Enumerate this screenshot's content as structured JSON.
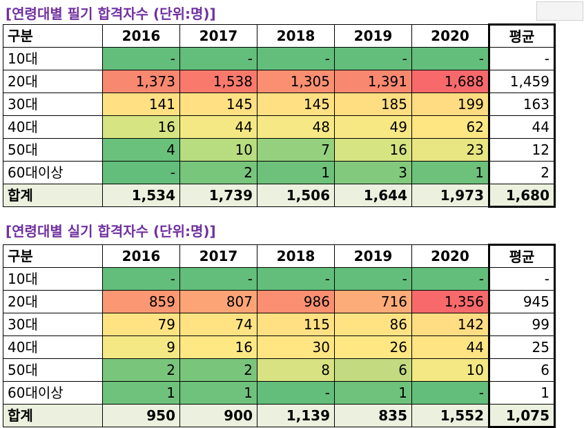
{
  "written": {
    "title": "[연령대별 필기 합격자수 (단위:명)]",
    "headers": [
      "구분",
      "2016",
      "2017",
      "2018",
      "2019",
      "2020",
      "평균"
    ],
    "rows": [
      {
        "label": "10대",
        "values": [
          "-",
          "-",
          "-",
          "-",
          "-"
        ],
        "colors": [
          "#63be7b",
          "#63be7b",
          "#63be7b",
          "#63be7b",
          "#63be7b"
        ],
        "avg": "-"
      },
      {
        "label": "20대",
        "values": [
          "1,373",
          "1,538",
          "1,305",
          "1,391",
          "1,688"
        ],
        "colors": [
          "#f98870",
          "#f97a6d",
          "#fa8f72",
          "#f98870",
          "#f8696b"
        ],
        "avg": "1,459"
      },
      {
        "label": "30대",
        "values": [
          "141",
          "145",
          "145",
          "185",
          "199"
        ],
        "colors": [
          "#ffe083",
          "#ffe083",
          "#ffe083",
          "#ffde82",
          "#ffdc81"
        ],
        "avg": "163"
      },
      {
        "label": "40대",
        "values": [
          "16",
          "44",
          "48",
          "49",
          "62"
        ],
        "colors": [
          "#d6e482",
          "#f3e884",
          "#f6e884",
          "#f8e884",
          "#fee783"
        ],
        "avg": "44"
      },
      {
        "label": "50대",
        "values": [
          "4",
          "10",
          "7",
          "16",
          "23"
        ],
        "colors": [
          "#6ac17c",
          "#b8dc80",
          "#95d07e",
          "#d6e482",
          "#e8e583"
        ],
        "avg": "12"
      },
      {
        "label": "60대이상",
        "values": [
          "-",
          "2",
          "1",
          "3",
          "1"
        ],
        "colors": [
          "#63be7b",
          "#78c57c",
          "#6dc17b",
          "#83c97d",
          "#6dc17b"
        ],
        "avg": "2"
      }
    ],
    "total": {
      "label": "합계",
      "values": [
        "1,534",
        "1,739",
        "1,506",
        "1,644",
        "1,973"
      ],
      "avg": "1,680"
    }
  },
  "practical": {
    "title": "[연령대별 실기 합격자수 (단위:명)]",
    "headers": [
      "구분",
      "2016",
      "2017",
      "2018",
      "2019",
      "2020",
      "평균"
    ],
    "rows": [
      {
        "label": "10대",
        "values": [
          "-",
          "-",
          "-",
          "-",
          "-"
        ],
        "colors": [
          "#63be7b",
          "#63be7b",
          "#63be7b",
          "#63be7b",
          "#63be7b"
        ],
        "avg": "-"
      },
      {
        "label": "20대",
        "values": [
          "859",
          "807",
          "986",
          "716",
          "1,356"
        ],
        "colors": [
          "#fb9873",
          "#fca475",
          "#fa8f72",
          "#fcac78",
          "#f8696b"
        ],
        "avg": "945"
      },
      {
        "label": "30대",
        "values": [
          "79",
          "74",
          "115",
          "86",
          "142"
        ],
        "colors": [
          "#ffe383",
          "#ffe383",
          "#ffe082",
          "#ffe383",
          "#ffdd82"
        ],
        "avg": "99"
      },
      {
        "label": "40대",
        "values": [
          "9",
          "16",
          "30",
          "26",
          "44"
        ],
        "colors": [
          "#f4e884",
          "#fee884",
          "#ffe683",
          "#ffe783",
          "#ffe483"
        ],
        "avg": "25"
      },
      {
        "label": "50대",
        "values": [
          "2",
          "2",
          "8",
          "6",
          "10"
        ],
        "colors": [
          "#79c57c",
          "#79c57c",
          "#d8e282",
          "#c3da80",
          "#f4e884"
        ],
        "avg": "6"
      },
      {
        "label": "60대이상",
        "values": [
          "1",
          "1",
          "-",
          "1",
          "-"
        ],
        "colors": [
          "#6fc27b",
          "#6fc27b",
          "#63be7b",
          "#6fc27b",
          "#63be7b"
        ],
        "avg": "1"
      }
    ],
    "total": {
      "label": "합계",
      "values": [
        "950",
        "900",
        "1,139",
        "835",
        "1,552"
      ],
      "avg": "1,075"
    }
  }
}
